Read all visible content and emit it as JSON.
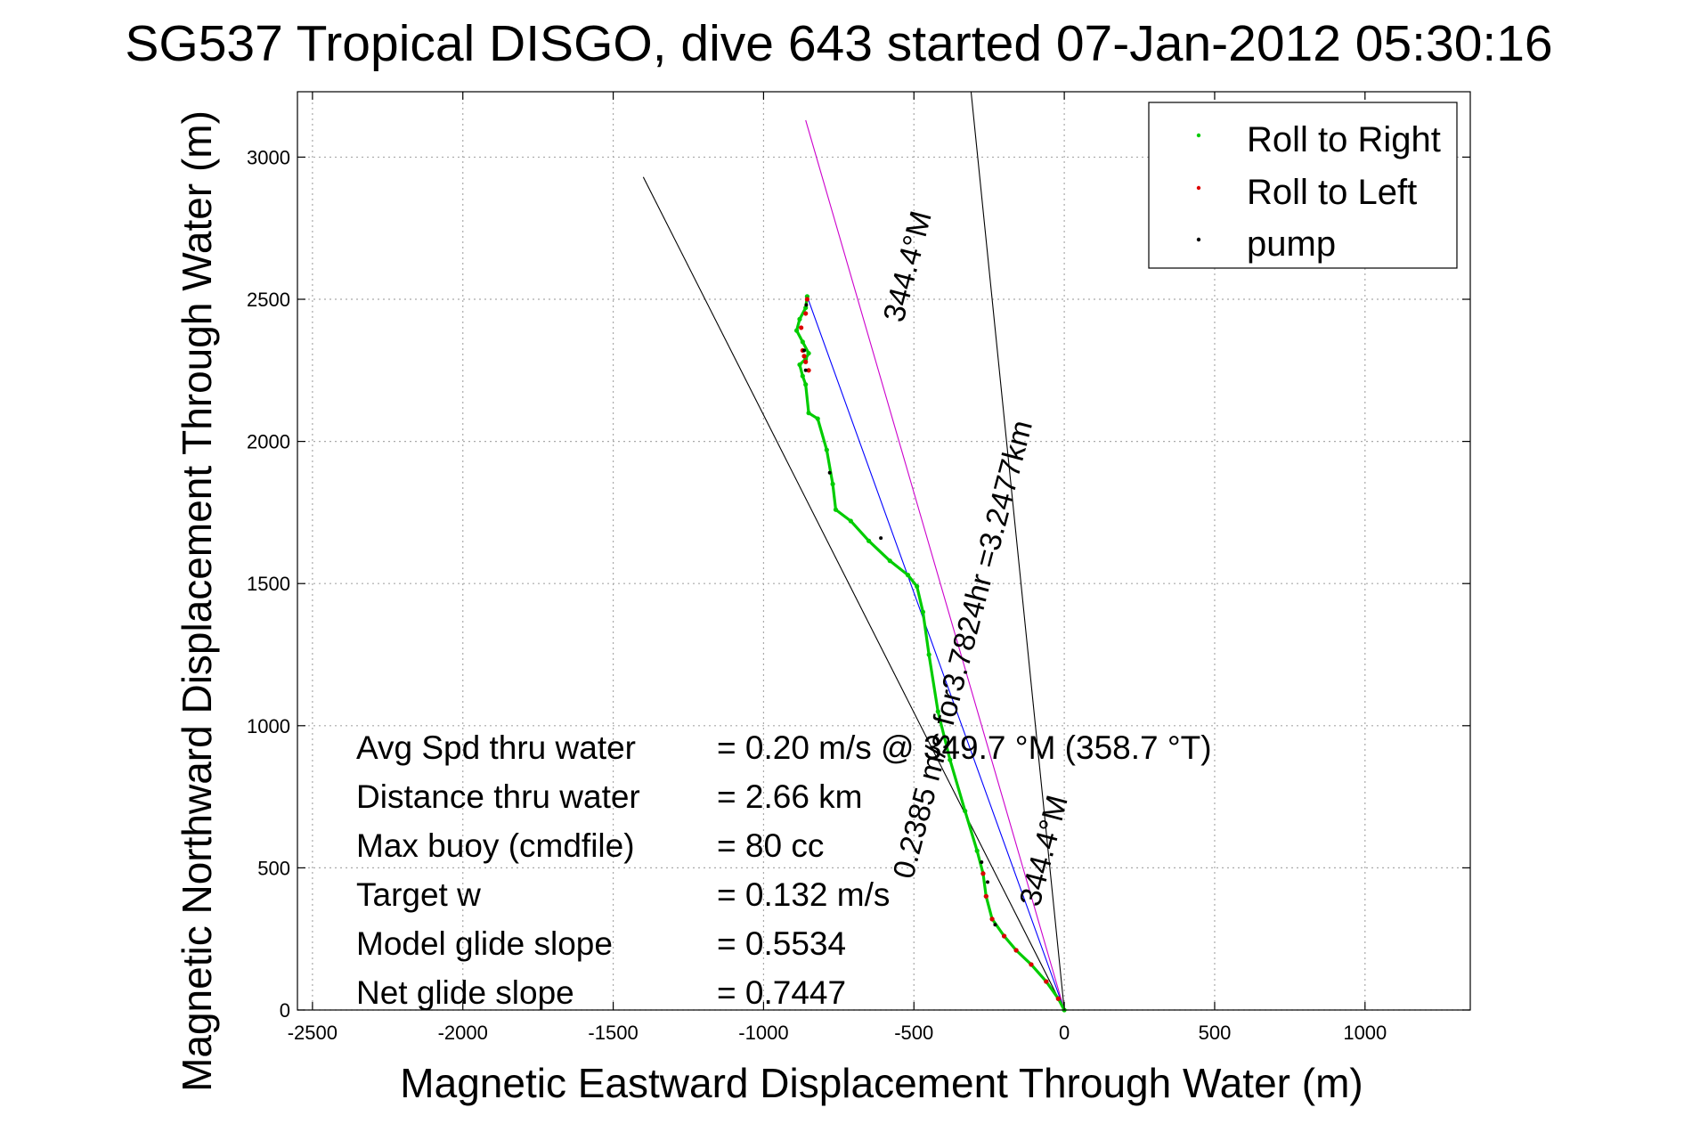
{
  "chart_data": {
    "type": "line",
    "title": "SG537 Tropical DISGO, dive 643 started 07-Jan-2012 05:30:16",
    "xlabel": "Magnetic Eastward Displacement Through Water (m)",
    "ylabel": "Magnetic Northward Displacement Through Water (m)",
    "xlim": [
      -2550,
      1350
    ],
    "ylim": [
      0,
      3230
    ],
    "xticks": [
      -2500,
      -2000,
      -1500,
      -1000,
      -500,
      0,
      500,
      1000
    ],
    "xtick_labels": [
      "-2500",
      "-2000",
      "-1500",
      "-1000",
      "-500",
      "0",
      "500",
      "1000"
    ],
    "yticks": [
      0,
      500,
      1000,
      1500,
      2000,
      2500,
      3000
    ],
    "ytick_labels": [
      "0",
      "500",
      "1000",
      "1500",
      "2000",
      "2500",
      "3000"
    ],
    "grid": true,
    "legend_position": "top-right",
    "legend": [
      {
        "label": "Roll to Right",
        "color": "#00cc00"
      },
      {
        "label": "Roll to Left",
        "color": "#dd0000"
      },
      {
        "label": "pump",
        "color": "#000000"
      }
    ],
    "series": [
      {
        "name": "Roll to Right",
        "color": "#00cc00",
        "x": [
          0,
          -20,
          -60,
          -110,
          -160,
          -200,
          -240,
          -260,
          -270,
          -290,
          -330,
          -380,
          -420,
          -450,
          -470,
          -490,
          -520,
          -580,
          -650,
          -710,
          -760,
          -770,
          -790,
          -820,
          -850,
          -860,
          -870,
          -880,
          -860,
          -850,
          -870,
          -890,
          -880,
          -860,
          -855
        ],
        "y": [
          0,
          40,
          100,
          160,
          210,
          260,
          320,
          400,
          480,
          560,
          700,
          880,
          1050,
          1250,
          1400,
          1490,
          1530,
          1580,
          1650,
          1720,
          1760,
          1850,
          1970,
          2080,
          2100,
          2200,
          2230,
          2270,
          2290,
          2310,
          2350,
          2390,
          2430,
          2470,
          2510
        ]
      },
      {
        "name": "Roll to Left",
        "color": "#dd0000",
        "x": [
          -20,
          -60,
          -110,
          -160,
          -200,
          -240,
          -260,
          -270,
          -850,
          -860,
          -865,
          -870,
          -875,
          -860,
          -855
        ],
        "y": [
          40,
          100,
          160,
          210,
          260,
          320,
          400,
          480,
          2250,
          2280,
          2300,
          2320,
          2400,
          2450,
          2500
        ]
      },
      {
        "name": "pump",
        "color": "#000000",
        "x": [
          -230,
          -255,
          -275,
          -610,
          -780,
          -860,
          -865,
          -858
        ],
        "y": [
          300,
          450,
          520,
          1660,
          1890,
          2250,
          2320,
          2480
        ]
      }
    ],
    "reference_lines": [
      {
        "id": "envelope-left",
        "color": "#000000",
        "x": [
          0,
          -1400
        ],
        "y": [
          0,
          2930
        ]
      },
      {
        "id": "envelope-right",
        "color": "#000000",
        "x": [
          0,
          -310
        ],
        "y": [
          0,
          3230
        ]
      },
      {
        "id": "heading-344-4",
        "color": "#cc00cc",
        "x": [
          0,
          -860
        ],
        "y": [
          0,
          3130
        ]
      },
      {
        "id": "net-track",
        "color": "#0000ff",
        "x": [
          0,
          -855
        ],
        "y": [
          0,
          2510
        ]
      }
    ],
    "annotations": {
      "heading_upper": "344.4°M",
      "course_label": "0.2385 m/s for3.7824hr =3.2477km",
      "heading_lower": "344.4°M"
    },
    "stats": [
      {
        "label": "Avg Spd thru water",
        "value": "=  0.20 m/s @ 349.7 °M (358.7 °T)"
      },
      {
        "label": "Distance thru water",
        "value": "=  2.66 km"
      },
      {
        "label": "Max buoy (cmdfile)",
        "value": "= 80 cc"
      },
      {
        "label": "Target w",
        "value": "= 0.132 m/s"
      },
      {
        "label": "Model glide slope",
        "value": "= 0.5534"
      },
      {
        "label": "Net glide slope",
        "value": "= 0.7447"
      }
    ]
  }
}
